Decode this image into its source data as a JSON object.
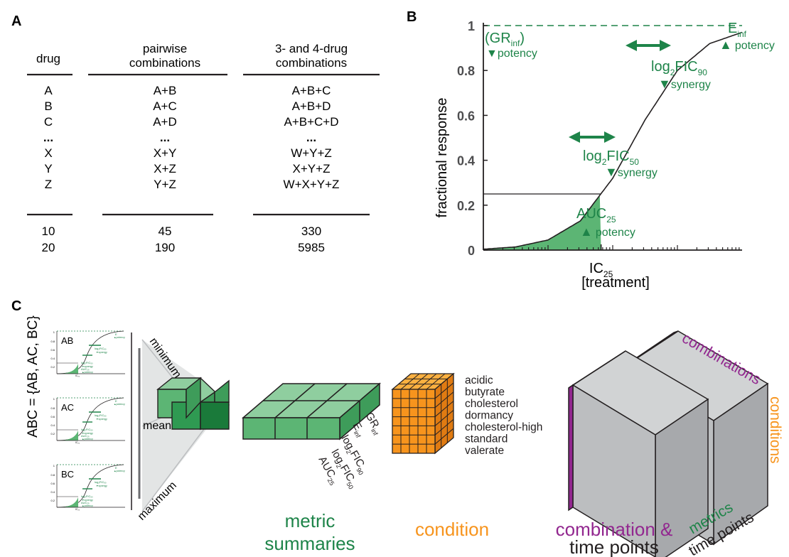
{
  "panel_a": {
    "letter": "A",
    "headers": [
      [
        "drug"
      ],
      [
        "pairwise",
        "combinations"
      ],
      [
        "3- and 4-drug",
        "combinations"
      ]
    ],
    "rows": [
      [
        "A",
        "A+B",
        "A+B+C"
      ],
      [
        "B",
        "A+C",
        "A+B+D"
      ],
      [
        "C",
        "A+D",
        "A+B+C+D"
      ],
      [
        "...",
        "...",
        "..."
      ],
      [
        "X",
        "X+Y",
        "W+Y+Z"
      ],
      [
        "Y",
        "X+Z",
        "X+Y+Z"
      ],
      [
        "Z",
        "Y+Z",
        "W+X+Y+Z"
      ]
    ],
    "totals": [
      [
        "10",
        "45",
        "330"
      ],
      [
        "20",
        "190",
        "5985"
      ]
    ]
  },
  "panel_b": {
    "letter": "B",
    "chart_data": {
      "type": "line",
      "ylabel": "fractional response",
      "xlabel": "[treatment]",
      "xscale": "log",
      "ylim": [
        0,
        1
      ],
      "yticks": [
        "0",
        "0.2",
        "0.4",
        "0.6",
        "0.8",
        "1"
      ],
      "ytick_values": [
        0,
        0.2,
        0.4,
        0.6,
        0.8,
        1
      ],
      "xtick_label": "IC",
      "xtick_sub": "25",
      "reference_line": {
        "y": 1,
        "style": "dashed",
        "color": "#1e8449"
      },
      "auc_threshold": 0.25,
      "curve": {
        "x_decades": [
          0,
          0.5,
          1,
          1.5,
          2,
          2.5,
          3,
          3.5,
          4
        ],
        "y": [
          0.004,
          0.014,
          0.045,
          0.13,
          0.32,
          0.58,
          0.8,
          0.92,
          0.97
        ],
        "note": "sigmoid dose-response curve from left axis to right edge"
      },
      "annotations": [
        {
          "id": "grinf",
          "main": "(GR",
          "sub": "inf",
          "tail": ")",
          "marker": "▼",
          "marker_text": "potency"
        },
        {
          "id": "einf",
          "main": "E",
          "sub": "inf",
          "marker": "▲",
          "marker_text": "potency"
        },
        {
          "id": "fic90",
          "main": "log",
          "sub": "2",
          "tail": "FIC",
          "sub2": "90",
          "marker": "▼",
          "marker_text": "synergy"
        },
        {
          "id": "fic50",
          "main": "log",
          "sub": "2",
          "tail": "FIC",
          "sub2": "50",
          "marker": "▼",
          "marker_text": "synergy"
        },
        {
          "id": "auc",
          "main": "AUC",
          "sub": "25",
          "marker": "▲",
          "marker_text": "potency"
        }
      ]
    }
  },
  "panel_c": {
    "letter": "C",
    "set_label": "ABC = {AB, AC, BC}",
    "mini_plots": [
      "AB",
      "AC",
      "BC"
    ],
    "summary_labels": [
      "minimum",
      "mean",
      "maximum"
    ],
    "metric_labels": [
      {
        "main": "GR",
        "sub": "inf"
      },
      {
        "main": "E",
        "sub": "inf"
      },
      {
        "main": "log",
        "sub": "2",
        "tail": "FIC",
        "sub2": "90"
      },
      {
        "main": "log",
        "sub": "2",
        "tail": "FIC",
        "sub2": "50"
      },
      {
        "main": "AUC",
        "sub": "25"
      }
    ],
    "conditions": [
      "acidic",
      "butyrate",
      "cholesterol",
      "dormancy",
      "cholesterol-high",
      "standard",
      "valerate"
    ],
    "cube_labels": {
      "combinations": "combinations",
      "conditions": "conditions",
      "metrics": "metrics",
      "time_points": "time points"
    },
    "captions": {
      "metric_summaries": [
        "metric",
        "summaries"
      ],
      "condition": "condition",
      "combination_time": [
        "combination &",
        "time points"
      ]
    },
    "colors": {
      "green": "#1e8449",
      "green_fill": "#5cb574",
      "orange": "#f7941d",
      "purple": "#92278f",
      "gray": "#bcbec0"
    }
  }
}
